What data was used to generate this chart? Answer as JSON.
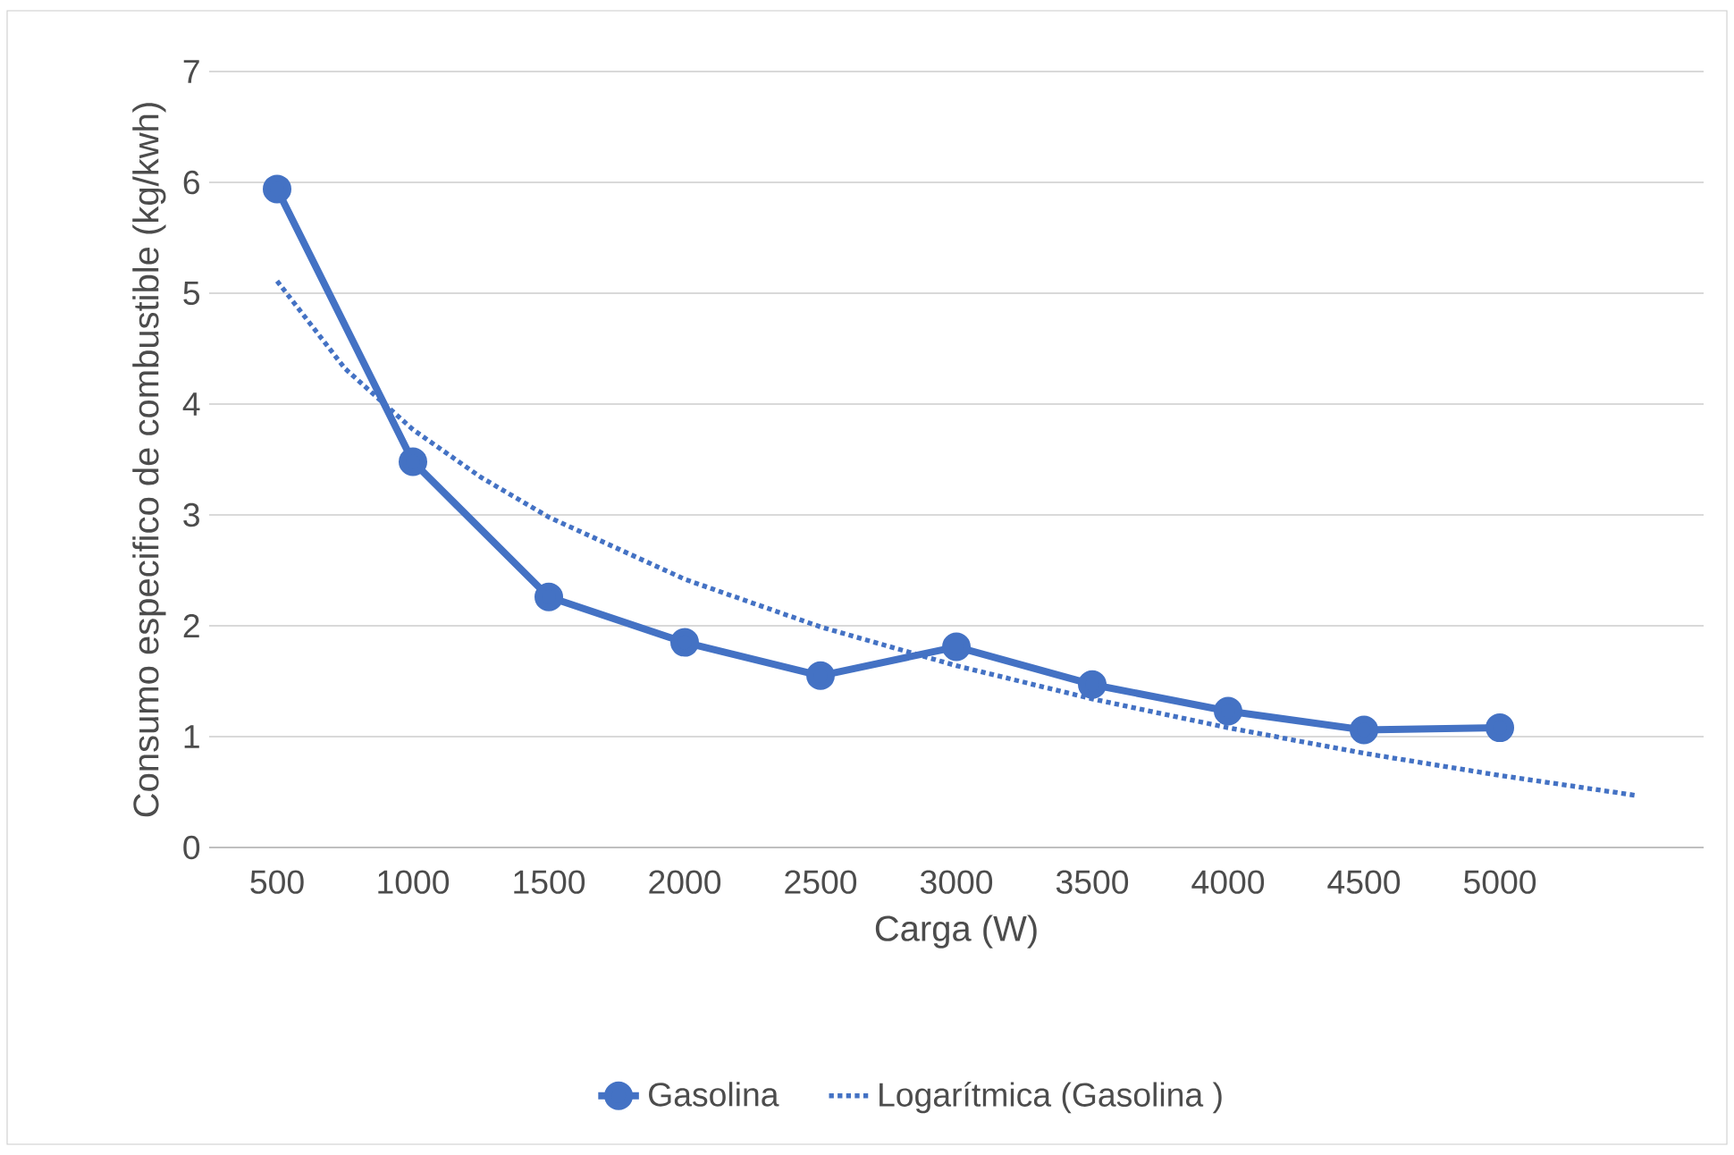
{
  "chart_data": {
    "type": "line",
    "xlabel": "Carga (W)",
    "ylabel": "Consumo especifico de combustible (kg/kwh)",
    "xlim": [
      250,
      5750
    ],
    "xticks": [
      500,
      1000,
      1500,
      2000,
      2500,
      3000,
      3500,
      4000,
      4500,
      5000
    ],
    "ylim": [
      0,
      7
    ],
    "yticks": [
      0,
      1,
      2,
      3,
      4,
      5,
      6,
      7
    ],
    "grid": "y",
    "legend": "bottom",
    "series": [
      {
        "name": "Gasolina",
        "color": "#4472c4",
        "marker": "circle",
        "line_style": "solid",
        "x": [
          500,
          1000,
          1500,
          2000,
          2500,
          3000,
          3500,
          4000,
          4500,
          5000
        ],
        "values": [
          5.94,
          3.48,
          2.26,
          1.85,
          1.55,
          1.81,
          1.47,
          1.23,
          1.06,
          1.08
        ]
      },
      {
        "name": "Logarítmica (Gasolina )",
        "color": "#4472c4",
        "marker": "none",
        "line_style": "dotted",
        "x": [
          500,
          750,
          1000,
          1250,
          1500,
          2000,
          2500,
          3000,
          3500,
          4000,
          4500,
          5000,
          5500
        ],
        "values": [
          5.11,
          4.32,
          3.77,
          3.34,
          2.98,
          2.42,
          1.99,
          1.64,
          1.34,
          1.08,
          0.85,
          0.65,
          0.47
        ]
      }
    ]
  }
}
